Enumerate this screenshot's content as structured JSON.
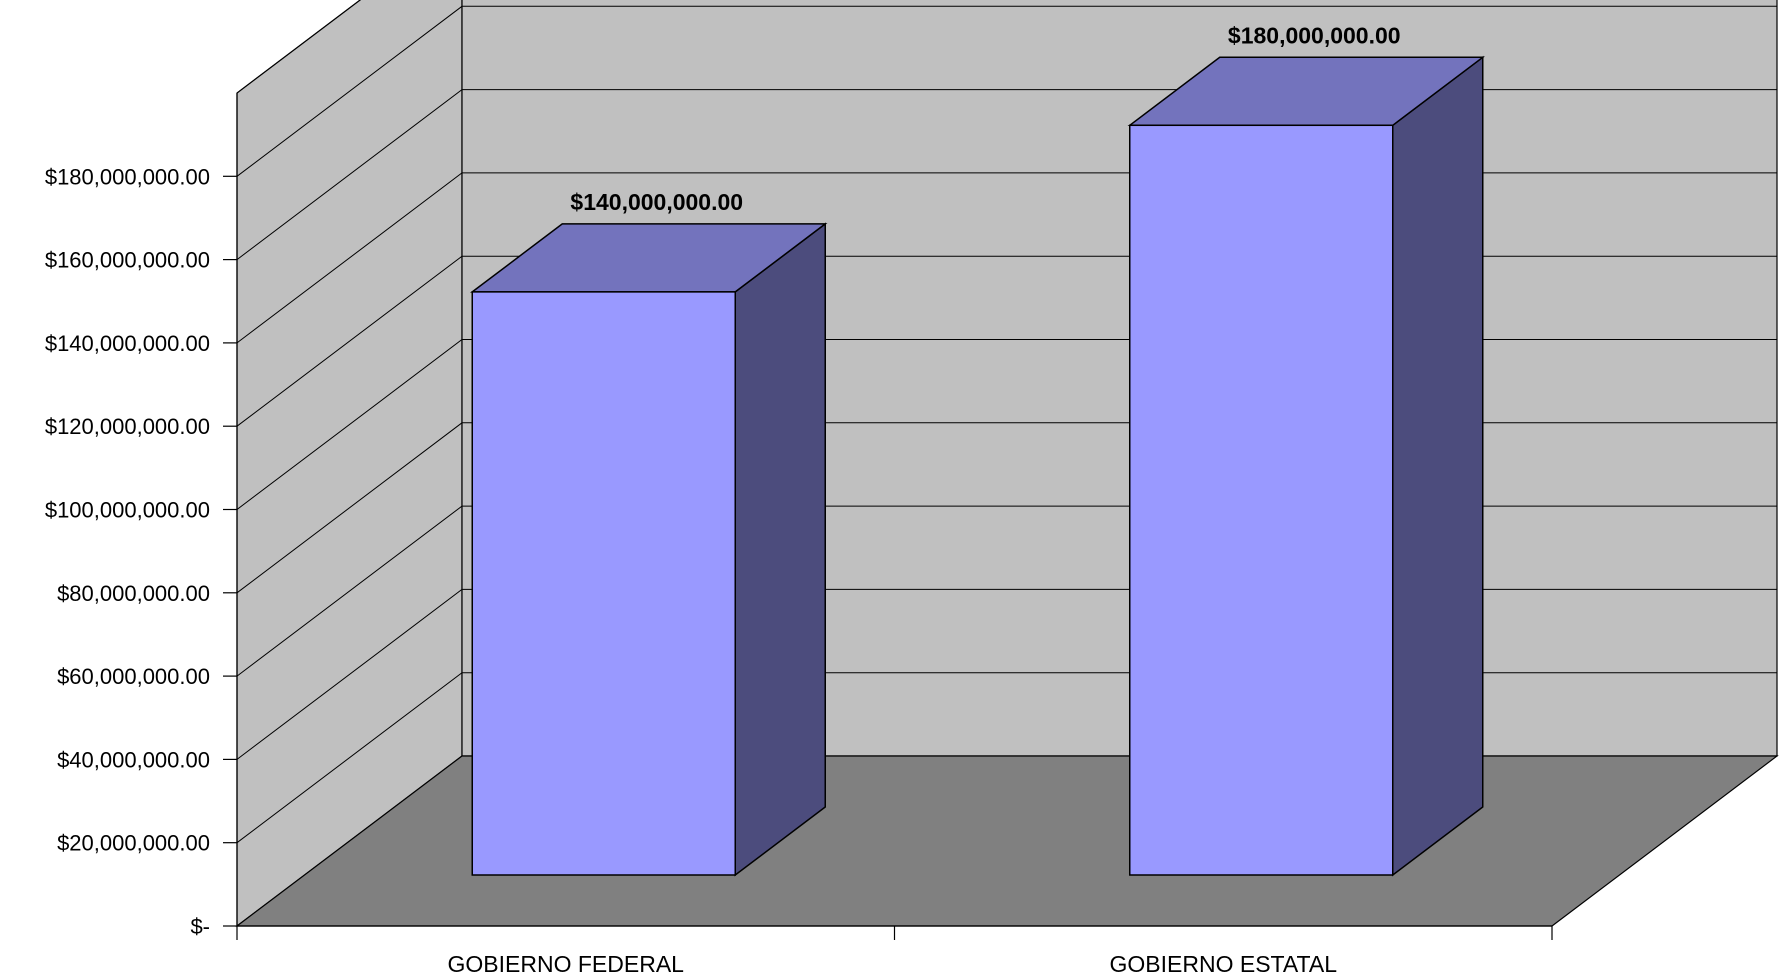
{
  "chart_data": {
    "type": "bar",
    "style": "3d-column",
    "categories": [
      "GOBIERNO FEDERAL",
      "GOBIERNO ESTATAL"
    ],
    "series": [
      {
        "values": [
          140000000,
          180000000
        ]
      }
    ],
    "data_labels": [
      "$140,000,000.00",
      "$180,000,000.00"
    ],
    "ytick_labels": [
      "$-",
      "$20,000,000.00",
      "$40,000,000.00",
      "$60,000,000.00",
      "$80,000,000.00",
      "$100,000,000.00",
      "$120,000,000.00",
      "$140,000,000.00",
      "$160,000,000.00",
      "$180,000,000.00"
    ],
    "ylim": [
      0,
      200000000
    ],
    "grid": true,
    "legend": "none",
    "title": "",
    "xlabel": "",
    "ylabel": "",
    "colors": {
      "bar_front": "#9999ff",
      "bar_top": "#7373bd",
      "bar_side": "#4c4c7d",
      "walls": "#c0c0c0",
      "floor": "#808080"
    }
  }
}
